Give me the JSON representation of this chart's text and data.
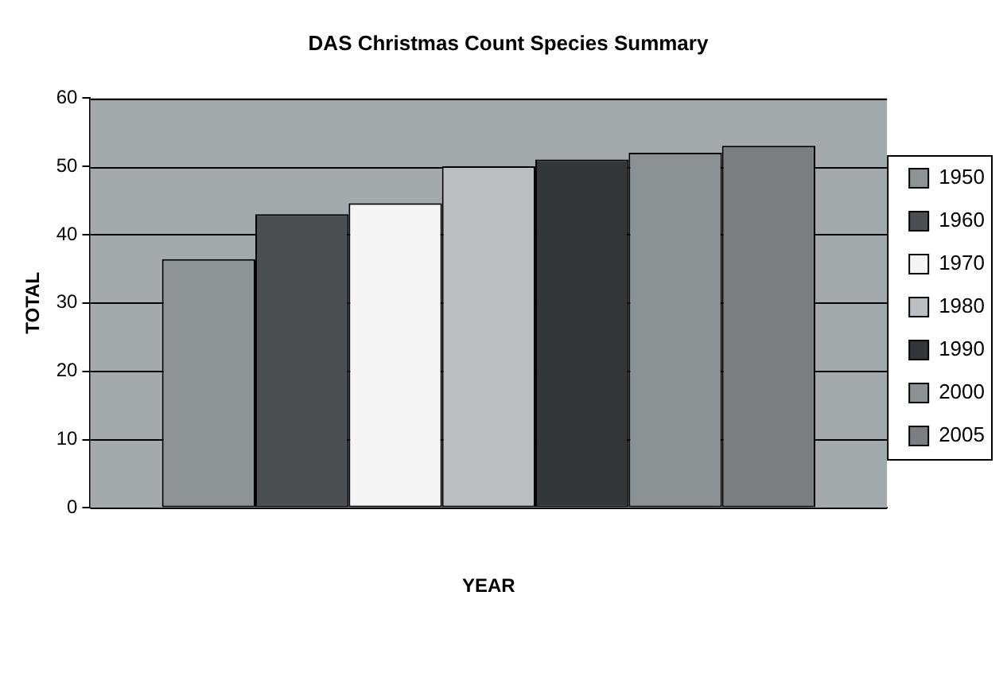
{
  "chart_data": {
    "type": "bar",
    "title": "DAS Christmas Count Species Summary",
    "xlabel": "YEAR",
    "ylabel": "TOTAL",
    "categories": [
      null
    ],
    "series": [
      {
        "name": "1950",
        "color": "#8e9396",
        "values": [
          36.4
        ]
      },
      {
        "name": "1960",
        "color": "#4b4f52",
        "values": [
          43
        ]
      },
      {
        "name": "1970",
        "color": "#f5f5f5",
        "values": [
          44.6
        ]
      },
      {
        "name": "1980",
        "color": "#bbbfc1",
        "values": [
          50
        ]
      },
      {
        "name": "1990",
        "color": "#323636",
        "values": [
          51
        ]
      },
      {
        "name": "2000",
        "color": "#8c9193",
        "values": [
          52
        ]
      },
      {
        "name": "2005",
        "color": "#7c7f81",
        "values": [
          53
        ]
      }
    ],
    "ylim": [
      0,
      60
    ],
    "yticks": [
      0,
      10,
      20,
      30,
      40,
      50,
      60
    ],
    "grid": "y",
    "legend": "right"
  }
}
